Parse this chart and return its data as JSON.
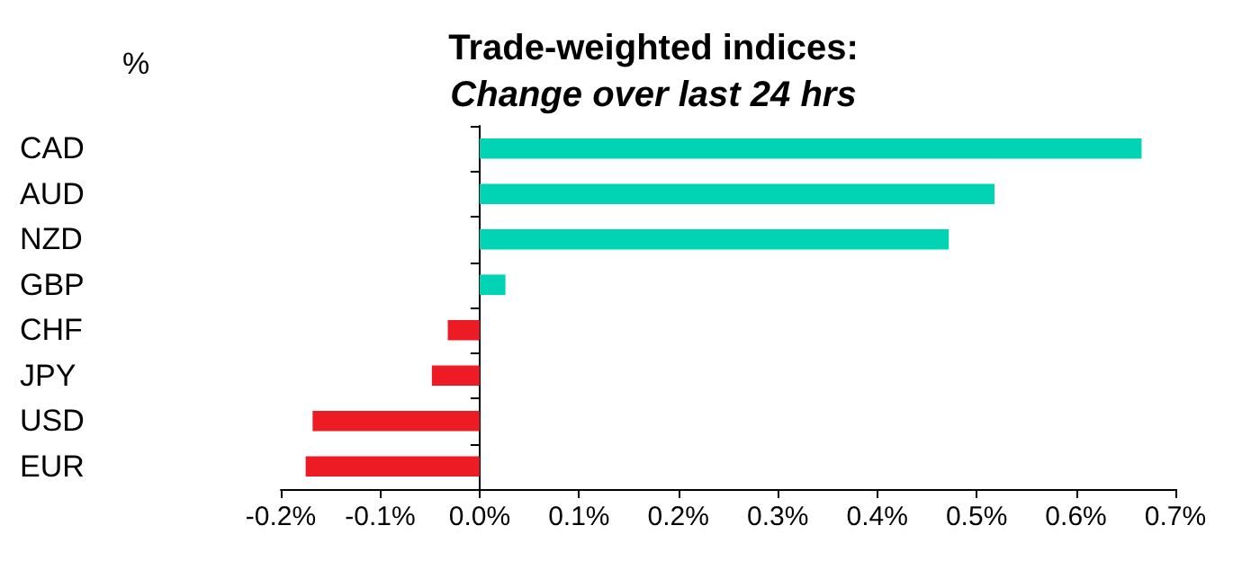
{
  "chart_data": {
    "type": "bar",
    "orientation": "horizontal",
    "title": "Trade-weighted indices:",
    "subtitle": "Change over last 24 hrs",
    "ylabel": "%",
    "categories": [
      "CAD",
      "AUD",
      "NZD",
      "GBP",
      "CHF",
      "JPY",
      "USD",
      "EUR"
    ],
    "values": [
      0.666,
      0.518,
      0.472,
      0.026,
      -0.032,
      -0.048,
      -0.168,
      -0.175
    ],
    "colors": [
      "#00d4b5",
      "#00d4b5",
      "#00d4b5",
      "#00d4b5",
      "#ed1c24",
      "#ed1c24",
      "#ed1c24",
      "#ed1c24"
    ],
    "xlim": [
      -0.2,
      0.7
    ],
    "xticks": [
      {
        "value": -0.2,
        "label": "-0.2%"
      },
      {
        "value": -0.1,
        "label": "-0.1%"
      },
      {
        "value": 0,
        "label": "0.0%"
      },
      {
        "value": 0.1,
        "label": "0.1%"
      },
      {
        "value": 0.2,
        "label": "0.2%"
      },
      {
        "value": 0.3,
        "label": "0.3%"
      },
      {
        "value": 0.4,
        "label": "0.4%"
      },
      {
        "value": 0.5,
        "label": "0.5%"
      },
      {
        "value": 0.6,
        "label": "0.6%"
      },
      {
        "value": 0.7,
        "label": "0.7%"
      }
    ],
    "data_labels": false
  }
}
